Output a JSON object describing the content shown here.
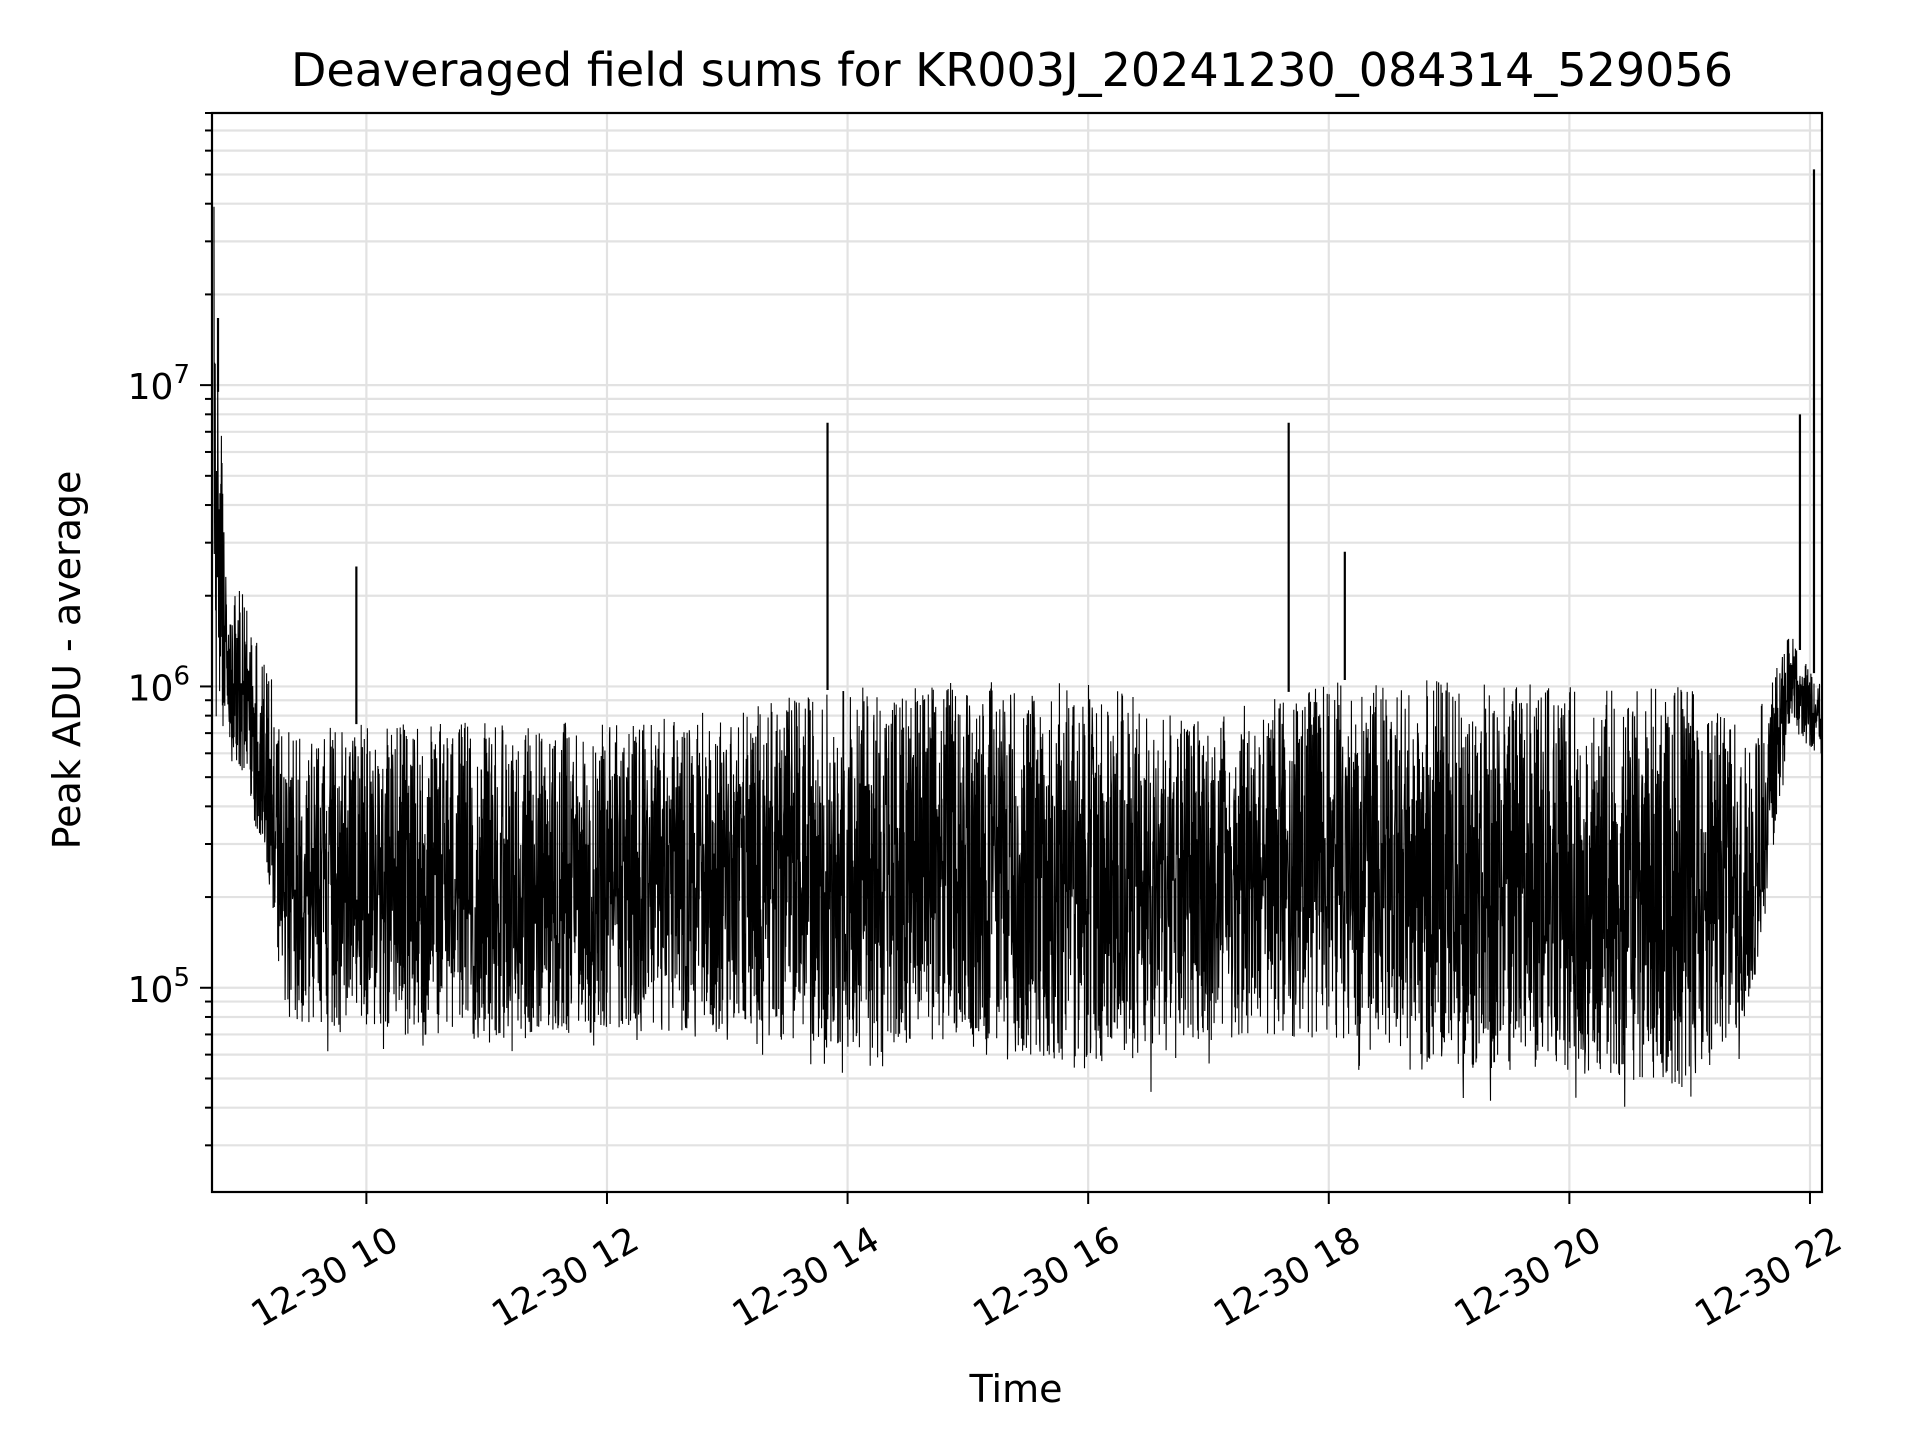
{
  "chart_data": {
    "type": "line",
    "title": "Deaveraged field sums for KR003J_20241230_084314_529056",
    "xlabel": "Time",
    "ylabel": "Peak ADU - average",
    "y_scale": "log",
    "grid": "both",
    "color": "#000000",
    "xlim": [
      "2024-12-30 08:43",
      "2024-12-30 22:06"
    ],
    "ylim": [
      21000,
      80000000
    ],
    "x_ticks": [
      {
        "value": "2024-12-30 10:00",
        "label": "12-30 10"
      },
      {
        "value": "2024-12-30 12:00",
        "label": "12-30 12"
      },
      {
        "value": "2024-12-30 14:00",
        "label": "12-30 14"
      },
      {
        "value": "2024-12-30 16:00",
        "label": "12-30 16"
      },
      {
        "value": "2024-12-30 18:00",
        "label": "12-30 18"
      },
      {
        "value": "2024-12-30 20:00",
        "label": "12-30 20"
      },
      {
        "value": "2024-12-30 22:00",
        "label": "12-30 22"
      }
    ],
    "y_ticks": [
      {
        "value": 100000,
        "base": "10",
        "exp": "5"
      },
      {
        "value": 1000000,
        "base": "10",
        "exp": "6"
      },
      {
        "value": 10000000,
        "base": "10",
        "exp": "7"
      }
    ],
    "series": [
      {
        "envelope": [
          {
            "x": "2024-12-30 08:44",
            "low": 500000,
            "high": 45000000
          },
          {
            "x": "2024-12-30 08:50",
            "low": 600000,
            "high": 2300000
          },
          {
            "x": "2024-12-30 09:00",
            "low": 400000,
            "high": 2000000
          },
          {
            "x": "2024-12-30 09:10",
            "low": 200000,
            "high": 1200000
          },
          {
            "x": "2024-12-30 09:20",
            "low": 60000,
            "high": 750000
          },
          {
            "x": "2024-12-30 10:00",
            "low": 55000,
            "high": 750000
          },
          {
            "x": "2024-12-30 11:00",
            "low": 50000,
            "high": 760000
          },
          {
            "x": "2024-12-30 12:00",
            "low": 55000,
            "high": 760000
          },
          {
            "x": "2024-12-30 13:00",
            "low": 55000,
            "high": 850000
          },
          {
            "x": "2024-12-30 14:00",
            "low": 45000,
            "high": 1000000
          },
          {
            "x": "2024-12-30 15:00",
            "low": 50000,
            "high": 1050000
          },
          {
            "x": "2024-12-30 16:00",
            "low": 38000,
            "high": 1050000
          },
          {
            "x": "2024-12-30 17:00",
            "low": 50000,
            "high": 800000
          },
          {
            "x": "2024-12-30 18:00",
            "low": 50000,
            "high": 1050000
          },
          {
            "x": "2024-12-30 19:00",
            "low": 38000,
            "high": 1050000
          },
          {
            "x": "2024-12-30 20:00",
            "low": 38000,
            "high": 1000000
          },
          {
            "x": "2024-12-30 21:00",
            "low": 33000,
            "high": 1000000
          },
          {
            "x": "2024-12-30 21:30",
            "low": 60000,
            "high": 700000
          },
          {
            "x": "2024-12-30 21:50",
            "low": 700000,
            "high": 1500000
          },
          {
            "x": "2024-12-30 22:06",
            "low": 500000,
            "high": 1000000
          }
        ],
        "spikes": [
          {
            "x": "2024-12-30 08:44",
            "value": 45000000
          },
          {
            "x": "2024-12-30 08:46",
            "value": 9500000
          },
          {
            "x": "2024-12-30 09:55",
            "value": 2500000
          },
          {
            "x": "2024-12-30 13:50",
            "value": 7500000
          },
          {
            "x": "2024-12-30 17:40",
            "value": 7500000
          },
          {
            "x": "2024-12-30 18:08",
            "value": 2800000
          },
          {
            "x": "2024-12-30 21:55",
            "value": 8000000
          },
          {
            "x": "2024-12-30 22:02",
            "value": 52000000
          }
        ]
      }
    ]
  }
}
